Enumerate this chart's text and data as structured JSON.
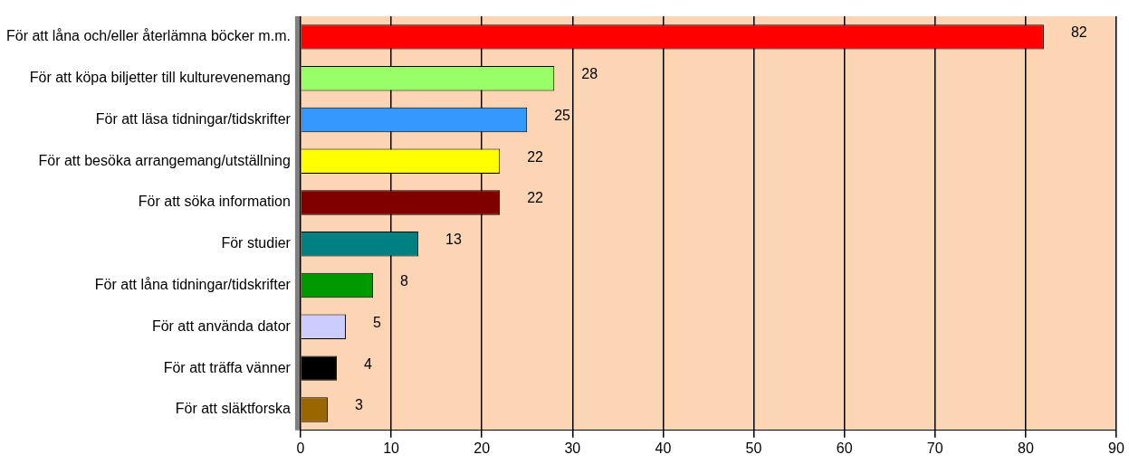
{
  "chart_data": {
    "type": "bar",
    "orientation": "horizontal",
    "categories": [
      "För att låna och/eller återlämna böcker m.m.",
      "För att köpa biljetter till kulturevenemang",
      "För att läsa tidningar/tidskrifter",
      "För att besöka arrangemang/utställning",
      "För att söka information",
      "För studier",
      "För att låna tidningar/tidskrifter",
      "För att använda dator",
      "För att träffa vänner",
      "För att släktforska"
    ],
    "values": [
      82,
      28,
      25,
      22,
      22,
      13,
      8,
      5,
      4,
      3
    ],
    "colors": [
      "#ff0000",
      "#99ff66",
      "#3399ff",
      "#ffff00",
      "#800000",
      "#008080",
      "#009900",
      "#ccccff",
      "#000000",
      "#996600"
    ],
    "xlim": [
      0,
      90
    ],
    "xticks": [
      0,
      10,
      20,
      30,
      40,
      50,
      60,
      70,
      80,
      90
    ],
    "grid": "x",
    "data_labels": true,
    "legend": false
  }
}
